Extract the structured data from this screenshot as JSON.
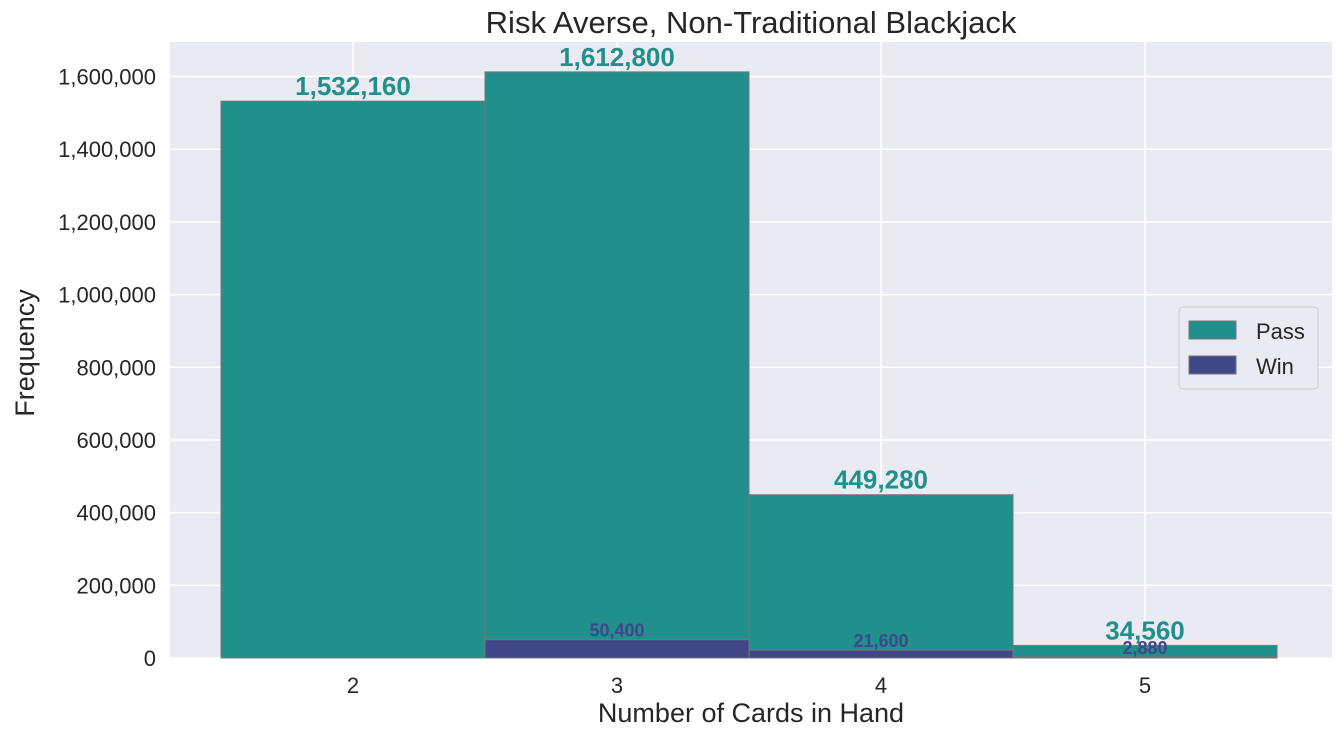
{
  "chart_data": {
    "type": "bar",
    "title": "Risk Averse, Non-Traditional Blackjack",
    "xlabel": "Number of Cards in Hand",
    "ylabel": "Frequency",
    "categories": [
      "2",
      "3",
      "4",
      "5"
    ],
    "series": [
      {
        "name": "Pass",
        "color": "#21908c",
        "values": [
          1532160,
          1612800,
          449280,
          34560
        ],
        "labels": [
          "1,532,160",
          "1,612,800",
          "449,280",
          "34,560"
        ]
      },
      {
        "name": "Win",
        "color": "#3f4788",
        "values": [
          0,
          50400,
          21600,
          2880
        ],
        "labels": [
          "",
          "50,400",
          "21,600",
          "2,880"
        ]
      }
    ],
    "ylim": [
      0,
      1695000
    ],
    "yticks": [
      0,
      200000,
      400000,
      600000,
      800000,
      1000000,
      1200000,
      1400000,
      1600000
    ],
    "ytick_labels": [
      "0",
      "200,000",
      "400,000",
      "600,000",
      "800,000",
      "1,000,000",
      "1,200,000",
      "1,400,000",
      "1,600,000"
    ],
    "grid": true,
    "legend_position": "right"
  }
}
